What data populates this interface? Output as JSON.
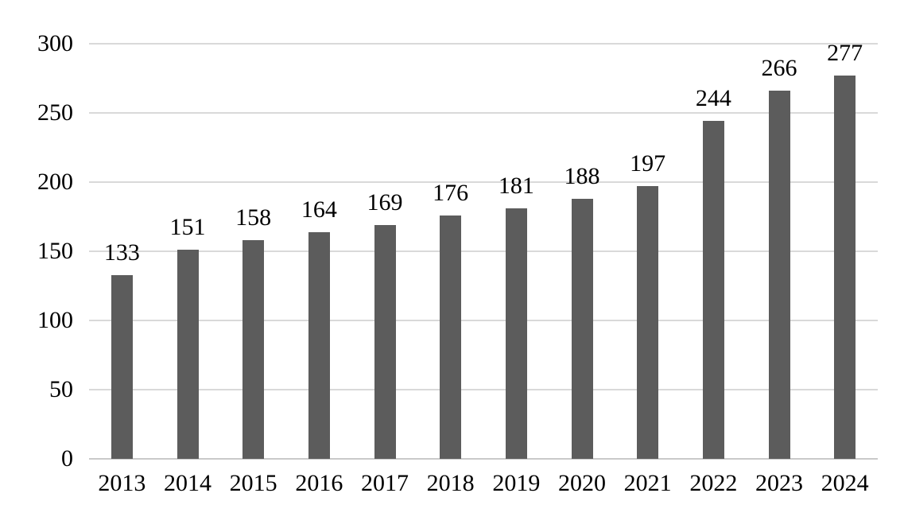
{
  "chart_data": {
    "type": "bar",
    "title": "",
    "xlabel": "",
    "ylabel": "",
    "categories": [
      "2013",
      "2014",
      "2015",
      "2016",
      "2017",
      "2018",
      "2019",
      "2020",
      "2021",
      "2022",
      "2023",
      "2024"
    ],
    "values": [
      133,
      151,
      158,
      164,
      169,
      176,
      181,
      188,
      197,
      244,
      266,
      277
    ],
    "ylim": [
      0,
      300
    ],
    "yticks": [
      0,
      50,
      100,
      150,
      200,
      250,
      300
    ],
    "grid": "horizontal-only",
    "legend": "none",
    "data_labels": "outside-end",
    "bar_color": "#5c5c5c",
    "gridline_color": "#d9d9d9",
    "axis_line_color": "#c9c9c9",
    "text_color": "#000000",
    "background_color": "#ffffff"
  }
}
